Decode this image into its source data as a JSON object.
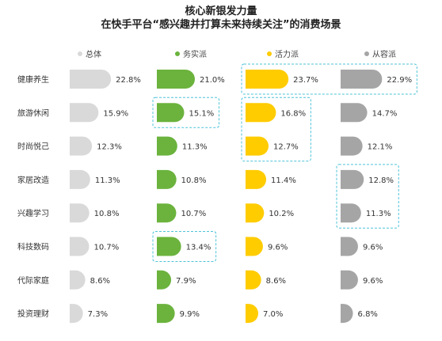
{
  "title_line1": "核心新银发力量",
  "title_line2": "在快手平台“感兴趣并打算未来持续关注”的消费场景",
  "colors": {
    "总体": "#d9d9d9",
    "务实派": "#6bb33d",
    "活力派": "#ffcc00",
    "从容派": "#a5a5a5",
    "highlight_border": "#4fc3d9"
  },
  "chart_data": {
    "type": "bar",
    "categories": [
      "健康养生",
      "旅游休闲",
      "时尚悦己",
      "家居改造",
      "兴趣学习",
      "科技数码",
      "代际家庭",
      "投资理财"
    ],
    "series": [
      {
        "name": "总体",
        "values": [
          22.8,
          15.9,
          12.3,
          11.3,
          10.8,
          10.7,
          8.6,
          7.3
        ],
        "labels": [
          "22.8%",
          "15.9%",
          "12.3%",
          "11.3%",
          "10.8%",
          "10.7%",
          "8.6%",
          "7.3%"
        ]
      },
      {
        "name": "务实派",
        "values": [
          21.0,
          15.1,
          11.3,
          10.8,
          10.7,
          13.4,
          7.9,
          9.9
        ],
        "labels": [
          "21.0%",
          "15.1%",
          "11.3%",
          "10.8%",
          "10.7%",
          "13.4%",
          "7.9%",
          "9.9%"
        ]
      },
      {
        "name": "活力派",
        "values": [
          23.7,
          16.8,
          12.7,
          11.4,
          10.2,
          9.6,
          8.6,
          7.0
        ],
        "labels": [
          "23.7%",
          "16.8%",
          "12.7%",
          "11.4%",
          "10.2%",
          "9.6%",
          "8.6%",
          "7.0%"
        ]
      },
      {
        "name": "从容派",
        "values": [
          22.9,
          14.7,
          12.1,
          12.8,
          11.3,
          9.6,
          9.6,
          6.8
        ],
        "labels": [
          "22.9%",
          "14.7%",
          "12.1%",
          "12.8%",
          "11.3%",
          "9.6%",
          "9.6%",
          "6.8%"
        ]
      }
    ],
    "highlights": [
      {
        "series": [
          2,
          3
        ],
        "categories": [
          0
        ]
      },
      {
        "series": [
          1
        ],
        "categories": [
          1
        ]
      },
      {
        "series": [
          2
        ],
        "categories": [
          1,
          2
        ]
      },
      {
        "series": [
          3
        ],
        "categories": [
          3,
          4
        ]
      },
      {
        "series": [
          1
        ],
        "categories": [
          5
        ]
      }
    ],
    "legend_position": "top"
  }
}
